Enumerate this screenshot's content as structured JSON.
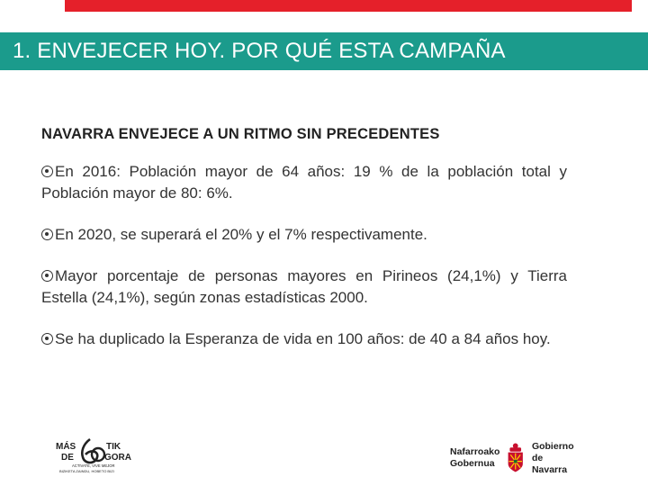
{
  "title": "1. ENVEJECER HOY. POR QUÉ ESTA CAMPAÑA",
  "heading": "NAVARRA ENVEJECE A UN RITMO SIN PRECEDENTES",
  "bullets": [
    "En 2016: Población mayor de 64 años: 19 % de la población total y Población mayor de 80: 6%.",
    "En 2020, se superará el 20% y el 7% respectivamente.",
    "Mayor porcentaje de personas mayores en Pirineos (24,1%) y Tierra Estella (24,1%), según zonas estadísticas 2000.",
    "Se ha duplicado la Esperanza de vida en 100 años: de 40 a 84 años hoy."
  ],
  "logo_left": {
    "line1a": "MÁS",
    "line1b": "TIK",
    "line2a": "DE",
    "line2b": "GORA",
    "number": "60",
    "tagline": "ACTIVATE, VIVE MEJOR",
    "tagline2": "BIZIKETA ZAINDU, HOBETO BIZI"
  },
  "logo_right": {
    "left_line1": "Nafarroako",
    "left_line2": "Gobernua",
    "right_line1": "Gobierno",
    "right_line2": "de Navarra"
  },
  "colors": {
    "accent_red": "#e5202a",
    "title_teal": "#1b9b8c"
  }
}
